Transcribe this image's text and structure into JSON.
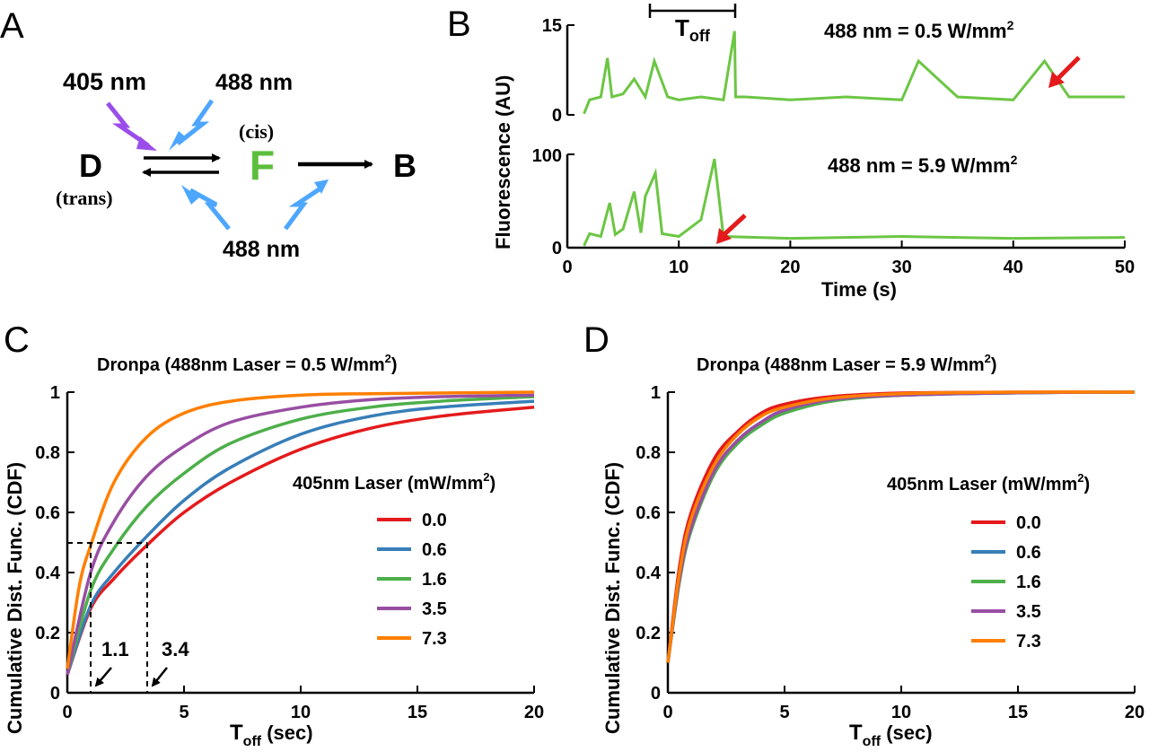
{
  "panels": {
    "A": {
      "letter": "A",
      "diagram": {
        "state_D": "D",
        "state_D_sub": "(trans)",
        "state_F": "F",
        "state_F_sup": "(cis)",
        "state_B": "B",
        "label_405": "405 nm",
        "label_488_top": "488 nm",
        "label_488_bottom": "488 nm",
        "colors": {
          "violet": "#9B4DEB",
          "blue": "#4DA6FF",
          "green": "#5BBE3C",
          "black": "#000000"
        }
      }
    },
    "B": {
      "letter": "B",
      "ylabel": "Fluorescence (AU)",
      "xlabel": "Time (s)",
      "toff_label": "T",
      "toff_sub": "off",
      "top_power_label": "488 nm = 0.5 W/mm",
      "bottom_power_label": "488 nm = 5.9 W/mm",
      "power_sup": "2",
      "top_yticks": [
        "0",
        "15"
      ],
      "bottom_yticks": [
        "0",
        "100"
      ],
      "xticks": [
        "0",
        "10",
        "20",
        "30",
        "40",
        "50"
      ]
    },
    "C": {
      "letter": "C",
      "title_pre": "Dronpa (488nm Laser = 0.5 W/mm",
      "title_sup": "2",
      "title_post": ")",
      "legend_title_pre": "405nm Laser (mW/mm",
      "legend_title_sup": "2",
      "legend_title_post": ")",
      "annot_left": "1.1",
      "annot_right": "3.4"
    },
    "D": {
      "letter": "D",
      "title_pre": "Dronpa (488nm Laser = 5.9 W/mm",
      "title_sup": "2",
      "title_post": ")",
      "legend_title_pre": "405nm Laser (mW/mm",
      "legend_title_sup": "2",
      "legend_title_post": ")"
    },
    "shared": {
      "ylabel": "Cumulative Dist. Func. (CDF)",
      "xlabel_main": "T",
      "xlabel_sub": "off",
      "xlabel_unit": " (sec)"
    }
  },
  "chart_data": [
    {
      "panel": "B-top",
      "type": "line",
      "xlim": [
        0,
        50
      ],
      "ylim": [
        0,
        15
      ],
      "series_color": "#6CC644",
      "x": [
        1.5,
        2,
        3,
        3.6,
        4,
        5,
        6,
        7,
        7.8,
        9,
        10,
        12,
        14,
        15,
        15.1,
        16,
        20,
        25,
        30,
        31.5,
        35,
        40,
        42.8,
        45,
        50
      ],
      "y": [
        0.2,
        2.5,
        3,
        9.5,
        3,
        3.5,
        6,
        3,
        9,
        3,
        2.5,
        3,
        2.5,
        14,
        3,
        3,
        2.5,
        3,
        2.5,
        9,
        3,
        2.5,
        9,
        3,
        3
      ]
    },
    {
      "panel": "B-bottom",
      "type": "line",
      "xlim": [
        0,
        50
      ],
      "ylim": [
        0,
        100
      ],
      "series_color": "#6CC644",
      "x": [
        1.5,
        2,
        3,
        3.8,
        4.3,
        5,
        6,
        6.6,
        7,
        7.9,
        8.5,
        10,
        12,
        13.2,
        14,
        20,
        30,
        40,
        50
      ],
      "y": [
        2,
        15,
        12,
        48,
        14,
        20,
        60,
        16,
        55,
        80,
        15,
        12,
        30,
        95,
        12,
        10,
        12,
        10,
        11
      ]
    },
    {
      "panel": "C",
      "type": "line",
      "xlabel": "Toff (sec)",
      "ylabel": "Cumulative Dist. Func. (CDF)",
      "xlim": [
        0,
        20
      ],
      "ylim": [
        0,
        1
      ],
      "xticks": [
        0,
        5,
        10,
        15,
        20
      ],
      "yticks": [
        0,
        0.2,
        0.4,
        0.6,
        0.8,
        1
      ],
      "legend": "center-right",
      "series": [
        {
          "name": "0.0",
          "color": "#E41A1C",
          "x": [
            0,
            1,
            2,
            3.4,
            5,
            7,
            10,
            13,
            16,
            20
          ],
          "y": [
            0.06,
            0.28,
            0.38,
            0.49,
            0.6,
            0.7,
            0.81,
            0.88,
            0.92,
            0.95
          ]
        },
        {
          "name": "0.6",
          "color": "#377EB8",
          "x": [
            0,
            1,
            2,
            3.4,
            5,
            7,
            10,
            13,
            16,
            20
          ],
          "y": [
            0.06,
            0.29,
            0.4,
            0.52,
            0.64,
            0.75,
            0.86,
            0.92,
            0.95,
            0.97
          ]
        },
        {
          "name": "1.6",
          "color": "#4DAF4A",
          "x": [
            0,
            1,
            2,
            3.4,
            5,
            7,
            10,
            13,
            16,
            20
          ],
          "y": [
            0.06,
            0.34,
            0.48,
            0.62,
            0.73,
            0.83,
            0.91,
            0.95,
            0.97,
            0.985
          ]
        },
        {
          "name": "3.5",
          "color": "#984EA3",
          "x": [
            0,
            1,
            2,
            3.4,
            5,
            7,
            10,
            13,
            16,
            20
          ],
          "y": [
            0.06,
            0.4,
            0.57,
            0.72,
            0.82,
            0.9,
            0.95,
            0.975,
            0.985,
            0.99
          ]
        },
        {
          "name": "7.3",
          "color": "#FF7F00",
          "x": [
            0,
            0.5,
            1,
            2,
            3.4,
            5,
            7,
            10,
            13,
            20
          ],
          "y": [
            0.08,
            0.35,
            0.49,
            0.7,
            0.85,
            0.93,
            0.97,
            0.99,
            0.995,
            1.0
          ]
        }
      ]
    },
    {
      "panel": "D",
      "type": "line",
      "xlabel": "Toff (sec)",
      "ylabel": "Cumulative Dist. Func. (CDF)",
      "xlim": [
        0,
        20
      ],
      "ylim": [
        0,
        1
      ],
      "xticks": [
        0,
        5,
        10,
        15,
        20
      ],
      "yticks": [
        0,
        0.2,
        0.4,
        0.6,
        0.8,
        1
      ],
      "legend": "center-right",
      "series": [
        {
          "name": "0.0",
          "color": "#E41A1C",
          "x": [
            0,
            0.5,
            1,
            2,
            3,
            4,
            5,
            7,
            10,
            15,
            20
          ],
          "y": [
            0.1,
            0.42,
            0.6,
            0.78,
            0.87,
            0.93,
            0.96,
            0.985,
            0.997,
            1.0,
            1.0
          ]
        },
        {
          "name": "0.6",
          "color": "#377EB8",
          "x": [
            0,
            0.5,
            1,
            2,
            3,
            4,
            5,
            7,
            10,
            15,
            20
          ],
          "y": [
            0.1,
            0.38,
            0.55,
            0.74,
            0.84,
            0.9,
            0.94,
            0.975,
            0.99,
            0.998,
            1.0
          ]
        },
        {
          "name": "1.6",
          "color": "#4DAF4A",
          "x": [
            0,
            0.5,
            1,
            2,
            3,
            4,
            5,
            7,
            10,
            15,
            20
          ],
          "y": [
            0.1,
            0.37,
            0.54,
            0.73,
            0.83,
            0.89,
            0.93,
            0.97,
            0.99,
            0.998,
            1.0
          ]
        },
        {
          "name": "3.5",
          "color": "#984EA3",
          "x": [
            0,
            0.5,
            1,
            2,
            3,
            4,
            5,
            7,
            10,
            15,
            20
          ],
          "y": [
            0.1,
            0.38,
            0.55,
            0.74,
            0.84,
            0.9,
            0.94,
            0.975,
            0.99,
            0.998,
            1.0
          ]
        },
        {
          "name": "7.3",
          "color": "#FF7F00",
          "x": [
            0,
            0.5,
            1,
            2,
            3,
            4,
            5,
            7,
            10,
            15,
            20
          ],
          "y": [
            0.1,
            0.4,
            0.58,
            0.76,
            0.86,
            0.92,
            0.95,
            0.98,
            0.995,
            1.0,
            1.0
          ]
        }
      ]
    }
  ]
}
